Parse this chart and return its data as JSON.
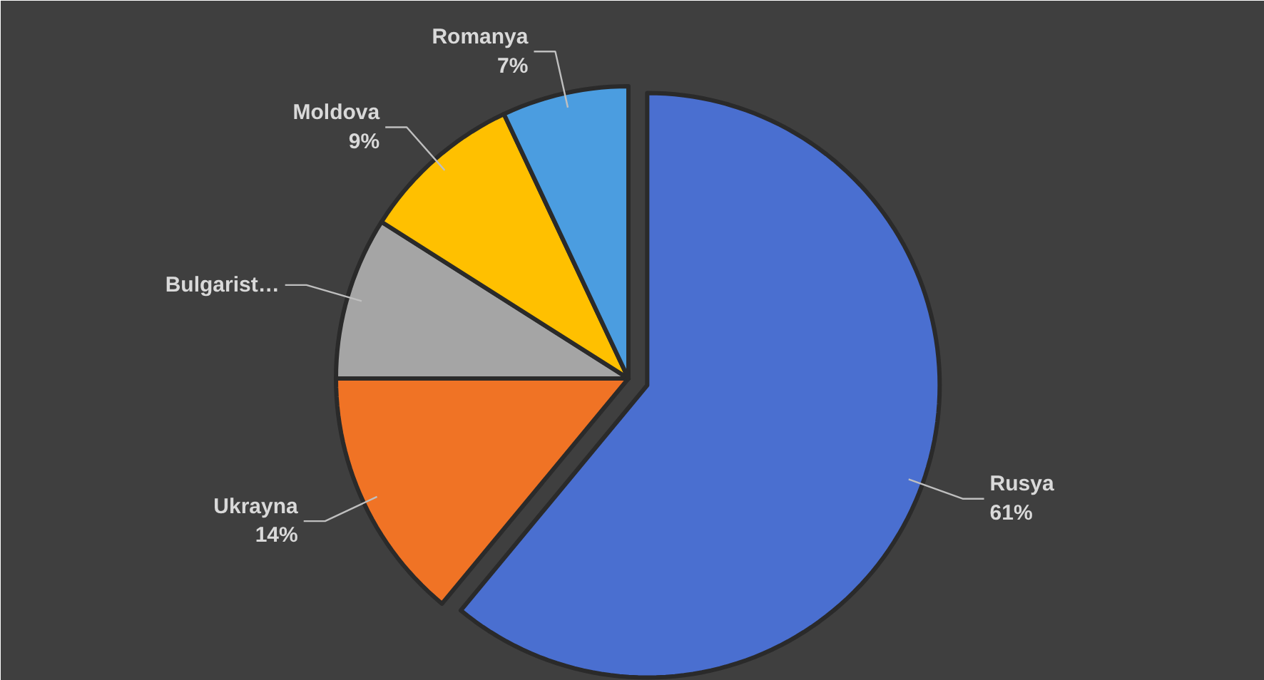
{
  "chart_data": {
    "type": "pie",
    "categories": [
      "Rusya",
      "Ukrayna",
      "Bulgarist…",
      "Moldova",
      "Romanya"
    ],
    "values": [
      61,
      14,
      9,
      9,
      7
    ],
    "value_labels": [
      "61%",
      "14%",
      null,
      "9%",
      "7%"
    ],
    "colors": [
      "#4a6fd0",
      "#f07325",
      "#a5a5a5",
      "#ffc000",
      "#4b9de0"
    ]
  }
}
